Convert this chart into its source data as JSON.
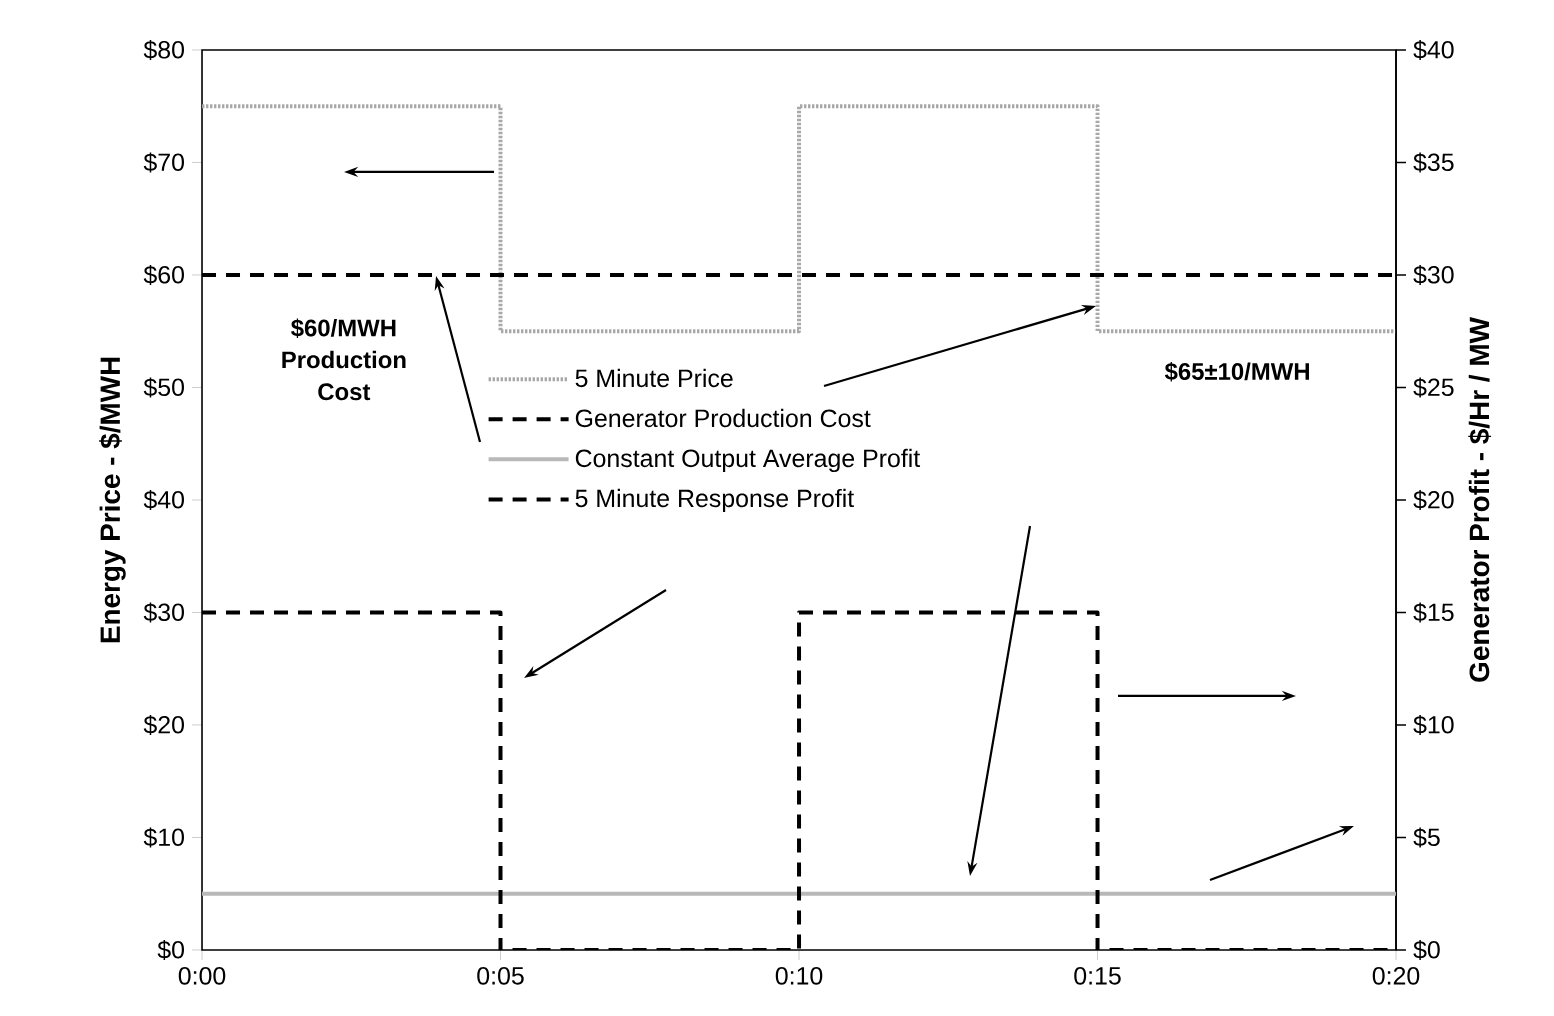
{
  "chart_data": {
    "type": "line",
    "xlabel": null,
    "ylabel": "Energy Price - $/MWH",
    "y2label": "Generator Profit - $/Hr / MW",
    "xlim": [
      0,
      0.33333
    ],
    "xticks": [
      {
        "value": 0,
        "label": "0:00"
      },
      {
        "value": 0.08333,
        "label": "0:05"
      },
      {
        "value": 0.16667,
        "label": "0:10"
      },
      {
        "value": 0.25,
        "label": "0:15"
      },
      {
        "value": 0.33333,
        "label": "0:20"
      }
    ],
    "ylim": [
      0,
      80
    ],
    "yticks": [
      {
        "value": 0,
        "label": "$0"
      },
      {
        "value": 10,
        "label": "$10"
      },
      {
        "value": 20,
        "label": "$20"
      },
      {
        "value": 30,
        "label": "$30"
      },
      {
        "value": 40,
        "label": "$40"
      },
      {
        "value": 50,
        "label": "$50"
      },
      {
        "value": 60,
        "label": "$60"
      },
      {
        "value": 70,
        "label": "$70"
      },
      {
        "value": 80,
        "label": "$80"
      }
    ],
    "y2lim": [
      0,
      40
    ],
    "y2ticks": [
      {
        "value": 0,
        "label": "$0"
      },
      {
        "value": 5,
        "label": "$5"
      },
      {
        "value": 10,
        "label": "$10"
      },
      {
        "value": 15,
        "label": "$15"
      },
      {
        "value": 20,
        "label": "$20"
      },
      {
        "value": 25,
        "label": "$25"
      },
      {
        "value": 30,
        "label": "$30"
      },
      {
        "value": 35,
        "label": "$35"
      },
      {
        "value": 40,
        "label": "$40"
      }
    ],
    "series": [
      {
        "name": "5 Minute Price",
        "type": "step",
        "axis": "y",
        "color": "#a8a8a8",
        "line_style": "dotted",
        "x": [
          0,
          0.08333,
          0.16667,
          0.25,
          0.33333
        ],
        "values": [
          75,
          55,
          75,
          55,
          55
        ]
      },
      {
        "name": "Generator Production Cost",
        "axis": "y",
        "color": "#000000",
        "line_style": "dashed",
        "x": [
          0,
          0.33333
        ],
        "values": [
          60,
          60
        ]
      },
      {
        "name": "Constant Output Average Profit",
        "axis": "y2",
        "color": "#b8b8b8",
        "line_style": "solid",
        "x": [
          0,
          0.33333
        ],
        "values": [
          2.5,
          2.5
        ]
      },
      {
        "name": "5 Minute Response Profit",
        "type": "step",
        "axis": "y2",
        "color": "#000000",
        "line_style": "dashed",
        "x": [
          0,
          0.08333,
          0.16667,
          0.25,
          0.33333
        ],
        "values": [
          15,
          0,
          15,
          0,
          0
        ]
      }
    ],
    "annotations": [
      "$60/MWH Production Cost",
      "$65±10/MWH"
    ],
    "legend": "center",
    "marker": "none",
    "grid": false
  }
}
